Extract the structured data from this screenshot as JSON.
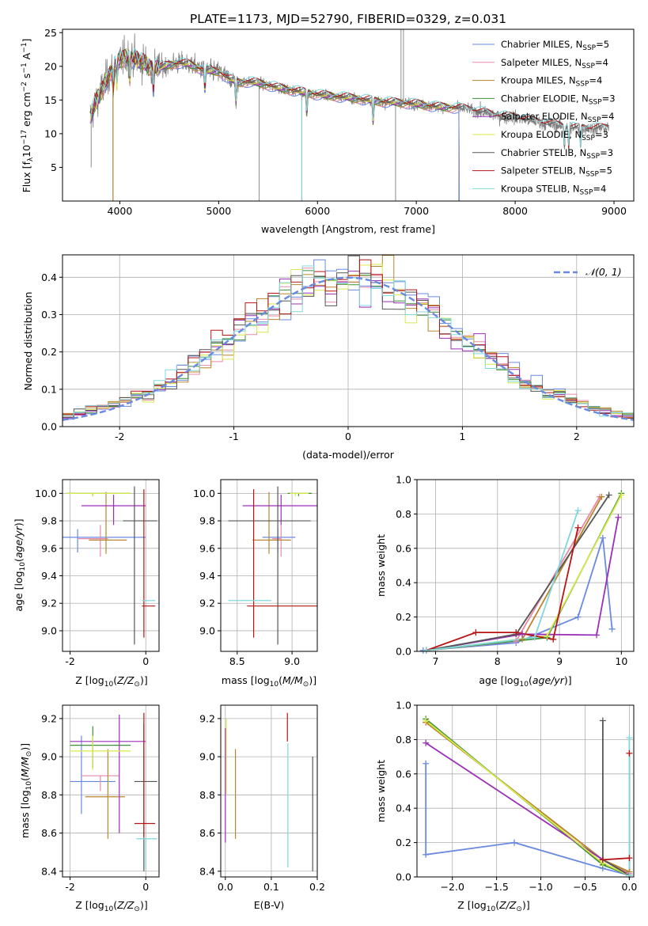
{
  "title": "PLATE=1173, MJD=52790, FIBERID=0329, z=0.031",
  "colors": {
    "Chabrier MILES": "#6a8ae0",
    "Salpeter MILES": "#e889a8",
    "Kroupa MILES": "#b8862b",
    "Chabrier ELODIE": "#3f8f3a",
    "Salpeter ELODIE": "#9a2fb8",
    "Kroupa ELODIE": "#d8e84a",
    "Chabrier STELIB": "#555555",
    "Salpeter STELIB": "#b81414",
    "Kroupa STELIB": "#7fd8dc",
    "data": "#808080",
    "normal": "#6a8ae0"
  },
  "chart_data": [
    {
      "id": "spectrum",
      "type": "line",
      "xlabel": "wavelength [Angstrom, rest frame]",
      "ylabel_parts": [
        "Flux [f",
        "λ",
        "10",
        "−17",
        " erg cm",
        "−2",
        " s",
        "−1",
        " A",
        "−1",
        "]"
      ],
      "xlim": [
        3420,
        9200
      ],
      "ylim": [
        0,
        25.5
      ],
      "xticks": [
        4000,
        5000,
        6000,
        7000,
        8000,
        9000
      ],
      "yticks": [
        5,
        10,
        15,
        20,
        25
      ],
      "legend_position": "upper right",
      "legend": [
        {
          "label": "Chabrier MILES, N",
          "sub": "SSP",
          "suffix": "=5",
          "color": "#6a8ae0"
        },
        {
          "label": "Salpeter MILES, N",
          "sub": "SSP",
          "suffix": "=4",
          "color": "#e889a8"
        },
        {
          "label": "Kroupa MILES, N",
          "sub": "SSP",
          "suffix": "=4",
          "color": "#b8862b"
        },
        {
          "label": "Chabrier ELODIE, N",
          "sub": "SSP",
          "suffix": "=3",
          "color": "#3f8f3a"
        },
        {
          "label": "Salpeter ELODIE, N",
          "sub": "SSP",
          "suffix": "=4",
          "color": "#9a2fb8"
        },
        {
          "label": "Kroupa ELODIE, N",
          "sub": "SSP",
          "suffix": "=3",
          "color": "#d8e84a"
        },
        {
          "label": "Chabrier STELIB, N",
          "sub": "SSP",
          "suffix": "=3",
          "color": "#555555"
        },
        {
          "label": "Salpeter STELIB, N",
          "sub": "SSP",
          "suffix": "=5",
          "color": "#b81414"
        },
        {
          "label": "Kroupa STELIB, N",
          "sub": "SSP",
          "suffix": "=4",
          "color": "#7fd8dc"
        }
      ],
      "continuum": [
        [
          3700,
          12.5
        ],
        [
          3800,
          16
        ],
        [
          3900,
          19
        ],
        [
          4000,
          21
        ],
        [
          4100,
          21.5
        ],
        [
          4200,
          20.8
        ],
        [
          4300,
          20
        ],
        [
          4400,
          19.8
        ],
        [
          4500,
          20.2
        ],
        [
          4600,
          20.5
        ],
        [
          4700,
          20.3
        ],
        [
          4800,
          19.7
        ],
        [
          4900,
          19.3
        ],
        [
          5000,
          19.2
        ],
        [
          5100,
          18.2
        ],
        [
          5200,
          17.6
        ],
        [
          5300,
          17.7
        ],
        [
          5400,
          17.5
        ],
        [
          5500,
          17.2
        ],
        [
          5600,
          16.8
        ],
        [
          5800,
          16.3
        ],
        [
          6000,
          15.8
        ],
        [
          6200,
          15.5
        ],
        [
          6400,
          15.2
        ],
        [
          6600,
          14.8
        ],
        [
          6800,
          14.6
        ],
        [
          7000,
          14.4
        ],
        [
          7200,
          14
        ],
        [
          7430,
          13.8
        ],
        [
          7600,
          13.4
        ],
        [
          7800,
          12.7
        ],
        [
          8000,
          12.4
        ],
        [
          8200,
          11.8
        ],
        [
          8400,
          11.3
        ],
        [
          8600,
          10.8
        ],
        [
          8800,
          10.8
        ],
        [
          8950,
          10.8
        ]
      ],
      "model_end": 7430,
      "absorption_lines": [
        3934,
        3969,
        4102,
        4340,
        4861,
        5175,
        5892,
        6563,
        8498,
        8542,
        8662
      ]
    },
    {
      "id": "residuals",
      "type": "histogram",
      "xlabel": "(data-model)/error",
      "ylabel": "Normed distribution",
      "xlim": [
        -2.5,
        2.5
      ],
      "ylim": [
        0,
        0.46
      ],
      "xticks": [
        -2,
        -1,
        0,
        1,
        2
      ],
      "yticks": [
        0.0,
        0.1,
        0.2,
        0.3,
        0.4
      ],
      "bin_width": 0.1,
      "legend": "𝒩(0, 1)",
      "legend_position": "upper right",
      "grid": true
    },
    {
      "id": "age-vs-Z",
      "type": "errorbar",
      "xlabel": "Z [log10(Z/Z⊙)]",
      "ylabel": "age  [log10(age/yr)]",
      "xlim": [
        -2.2,
        0.35
      ],
      "ylim": [
        8.85,
        10.1
      ],
      "xticks": [
        -2,
        0
      ],
      "yticks": [
        9.0,
        9.2,
        9.4,
        9.6,
        9.8,
        10.0
      ],
      "grid": true,
      "points": [
        {
          "model": "Chabrier MILES",
          "x": -1.8,
          "xerr": [
            0.6,
            1.8
          ],
          "y": 9.68,
          "yerr": [
            0.11,
            0.06
          ]
        },
        {
          "model": "Salpeter MILES",
          "x": -1.2,
          "xerr": [
            0.6,
            0.2
          ],
          "y": 9.67,
          "yerr": [
            0.13,
            0.1
          ]
        },
        {
          "model": "Kroupa MILES",
          "x": -1.05,
          "xerr": [
            0.45,
            0.55
          ],
          "y": 9.66,
          "yerr": [
            0.1,
            0.35
          ]
        },
        {
          "model": "Chabrier ELODIE",
          "x": -1.4,
          "xerr": [
            0.7,
            1.0
          ],
          "y": 10.0,
          "yerr": [
            0.02,
            0.0
          ]
        },
        {
          "model": "Salpeter ELODIE",
          "x": -0.85,
          "xerr": [
            0.85,
            0.85
          ],
          "y": 9.91,
          "yerr": [
            0.14,
            0.08
          ]
        },
        {
          "model": "Kroupa ELODIE",
          "x": -1.4,
          "xerr": [
            0.7,
            1.0
          ],
          "y": 10.0,
          "yerr": [
            0.02,
            0.0
          ]
        },
        {
          "model": "Chabrier STELIB",
          "x": -0.3,
          "xerr": [
            0.3,
            0.6
          ],
          "y": 9.8,
          "yerr": [
            0.9,
            0.25
          ]
        },
        {
          "model": "Salpeter STELIB",
          "x": -0.05,
          "xerr": [
            0.05,
            0.3
          ],
          "y": 9.18,
          "yerr": [
            0.23,
            0.85
          ]
        },
        {
          "model": "Kroupa STELIB",
          "x": -0.05,
          "xerr": [
            0.05,
            0.3
          ],
          "y": 9.22,
          "yerr": [
            0.0,
            0.0
          ]
        }
      ]
    },
    {
      "id": "age-vs-mass",
      "type": "errorbar",
      "xlabel": "mass [log10(M/M⊙)]",
      "xlim": [
        8.35,
        9.23
      ],
      "ylim": [
        8.85,
        10.1
      ],
      "xticks": [
        8.5,
        9.0
      ],
      "yticks": [
        9.0,
        9.2,
        9.4,
        9.6,
        9.8,
        10.0
      ],
      "grid": true,
      "points": [
        {
          "model": "Chabrier MILES",
          "x": 8.87,
          "xerr": [
            0.14,
            0.16
          ],
          "y": 9.68,
          "yerr": [
            0.11,
            0.06
          ]
        },
        {
          "model": "Salpeter MILES",
          "x": 8.9,
          "xerr": [
            0.08,
            0.0
          ],
          "y": 9.67,
          "yerr": [
            0.13,
            0.1
          ]
        },
        {
          "model": "Kroupa MILES",
          "x": 8.79,
          "xerr": [
            0.15,
            0.2
          ],
          "y": 9.66,
          "yerr": [
            0.1,
            0.35
          ]
        },
        {
          "model": "Chabrier ELODIE",
          "x": 9.06,
          "xerr": [
            0.1,
            0.12
          ],
          "y": 10.0,
          "yerr": [
            0.02,
            0.0
          ]
        },
        {
          "model": "Salpeter ELODIE",
          "x": 8.9,
          "xerr": [
            0.35,
            0.33
          ],
          "y": 9.91,
          "yerr": [
            0.14,
            0.08
          ]
        },
        {
          "model": "Kroupa ELODIE",
          "x": 9.03,
          "xerr": [
            0.05,
            0.12
          ],
          "y": 10.0,
          "yerr": [
            0.02,
            0.0
          ]
        },
        {
          "model": "Chabrier STELIB",
          "x": 8.87,
          "xerr": [
            0.45,
            0.3
          ],
          "y": 9.8,
          "yerr": [
            0.9,
            0.25
          ]
        },
        {
          "model": "Salpeter STELIB",
          "x": 8.65,
          "xerr": [
            0.06,
            0.6
          ],
          "y": 9.18,
          "yerr": [
            0.23,
            0.85
          ]
        },
        {
          "model": "Kroupa STELIB",
          "x": 8.57,
          "xerr": [
            0.15,
            0.24
          ],
          "y": 9.22,
          "yerr": [
            0.0,
            0.0
          ]
        }
      ]
    },
    {
      "id": "weight-vs-age",
      "type": "line",
      "xlabel": "age  [log10(age/yr)]",
      "ylabel": "mass weight",
      "xlim": [
        6.7,
        10.2
      ],
      "ylim": [
        0,
        1.0
      ],
      "xticks": [
        7,
        8,
        9,
        10
      ],
      "yticks": [
        0.0,
        0.2,
        0.4,
        0.6,
        0.8,
        1.0
      ],
      "grid": true,
      "series": [
        {
          "model": "Chabrier MILES",
          "x": [
            6.8,
            8.3,
            9.3,
            9.7,
            9.85
          ],
          "y": [
            0.005,
            0.05,
            0.2,
            0.66,
            0.13
          ]
        },
        {
          "model": "Salpeter MILES",
          "x": [
            6.85,
            8.3,
            9.65
          ],
          "y": [
            0.005,
            0.06,
            0.9
          ]
        },
        {
          "model": "Kroupa MILES",
          "x": [
            6.85,
            8.4,
            9.68
          ],
          "y": [
            0.005,
            0.07,
            0.9
          ]
        },
        {
          "model": "Chabrier ELODIE",
          "x": [
            6.85,
            8.8,
            10.0
          ],
          "y": [
            0.005,
            0.08,
            0.92
          ]
        },
        {
          "model": "Salpeter ELODIE",
          "x": [
            6.85,
            8.4,
            9.6,
            9.95
          ],
          "y": [
            0.005,
            0.1,
            0.095,
            0.78
          ]
        },
        {
          "model": "Kroupa ELODIE",
          "x": [
            6.85,
            8.8,
            10.0
          ],
          "y": [
            0.005,
            0.09,
            0.91
          ]
        },
        {
          "model": "Chabrier STELIB",
          "x": [
            6.85,
            8.3,
            9.8
          ],
          "y": [
            0.005,
            0.1,
            0.91
          ]
        },
        {
          "model": "Salpeter STELIB",
          "x": [
            6.85,
            7.65,
            8.3,
            8.9,
            9.3
          ],
          "y": [
            0.005,
            0.11,
            0.11,
            0.07,
            0.72
          ]
        },
        {
          "model": "Kroupa STELIB",
          "x": [
            6.85,
            8.6,
            9.3
          ],
          "y": [
            0.005,
            0.08,
            0.82
          ]
        }
      ]
    },
    {
      "id": "mass-vs-Z",
      "type": "errorbar",
      "xlabel": "Z [log10(Z/Z⊙)]",
      "ylabel": "mass [log10(M/M⊙)]",
      "xlim": [
        -2.2,
        0.35
      ],
      "ylim": [
        8.37,
        9.27
      ],
      "xticks": [
        -2,
        0
      ],
      "yticks": [
        8.4,
        8.6,
        8.8,
        9.0,
        9.2
      ],
      "grid": true,
      "points": [
        {
          "model": "Chabrier MILES",
          "x": -1.7,
          "xerr": [
            0.3,
            0.9
          ],
          "y": 8.87,
          "yerr": [
            0.17,
            0.24
          ]
        },
        {
          "model": "Salpeter MILES",
          "x": -1.2,
          "xerr": [
            0.5,
            0.5
          ],
          "y": 8.9,
          "yerr": [
            0.08,
            0.0
          ]
        },
        {
          "model": "Kroupa MILES",
          "x": -1.0,
          "xerr": [
            0.6,
            0.45
          ],
          "y": 8.79,
          "yerr": [
            0.22,
            0.25
          ]
        },
        {
          "model": "Chabrier ELODIE",
          "x": -1.4,
          "xerr": [
            0.6,
            1.0
          ],
          "y": 9.06,
          "yerr": [
            0.12,
            0.1
          ]
        },
        {
          "model": "Salpeter ELODIE",
          "x": -0.7,
          "xerr": [
            1.3,
            0.7
          ],
          "y": 9.08,
          "yerr": [
            0.48,
            0.14
          ]
        },
        {
          "model": "Kroupa ELODIE",
          "x": -1.4,
          "xerr": [
            0.6,
            1.0
          ],
          "y": 9.03,
          "yerr": [
            0.1,
            0.08
          ]
        },
        {
          "model": "Chabrier STELIB",
          "x": -0.05,
          "xerr": [
            0.25,
            0.35
          ],
          "y": 8.87,
          "yerr": [
            0.47,
            0.3
          ]
        },
        {
          "model": "Salpeter STELIB",
          "x": -0.05,
          "xerr": [
            0.25,
            0.3
          ],
          "y": 8.65,
          "yerr": [
            0.07,
            0.58
          ]
        },
        {
          "model": "Kroupa STELIB",
          "x": 0.0,
          "xerr": [
            0.25,
            0.3
          ],
          "y": 8.57,
          "yerr": [
            0.16,
            0.0
          ]
        }
      ]
    },
    {
      "id": "mass-vs-EBV",
      "type": "errorbar",
      "xlabel": "E(B-V)",
      "xlim": [
        -0.01,
        0.2
      ],
      "ylim": [
        8.37,
        9.27
      ],
      "xticks": [
        0.0,
        0.1,
        0.2
      ],
      "yticks": [
        8.4,
        8.6,
        8.8,
        9.0,
        9.2
      ],
      "grid": true,
      "points": [
        {
          "model": "Salpeter ELODIE",
          "x": 0.0,
          "yerr": [
            0.4,
            0.2
          ],
          "y": 8.95
        },
        {
          "model": "Kroupa ELODIE",
          "x": 0.002,
          "yerr": [
            0.2,
            0.2
          ],
          "y": 9.0
        },
        {
          "model": "Kroupa MILES",
          "x": 0.022,
          "yerr": [
            0.22,
            0.25
          ],
          "y": 8.79
        },
        {
          "model": "Salpeter STELIB",
          "x": 0.135,
          "yerr": [
            0.0,
            0.15
          ],
          "y": 9.08
        },
        {
          "model": "Kroupa STELIB",
          "x": 0.136,
          "yerr": [
            0.65,
            0.0
          ],
          "y": 9.07
        },
        {
          "model": "Chabrier STELIB",
          "x": 0.19,
          "yerr": [
            0.6,
            0.0
          ],
          "y": 9.0
        }
      ]
    },
    {
      "id": "weight-vs-Z",
      "type": "line",
      "xlabel": "Z [log10(Z/Z⊙)]",
      "ylabel": "mass weight",
      "xlim": [
        -2.4,
        0.05
      ],
      "ylim": [
        0,
        1.0
      ],
      "xticks": [
        -2.0,
        -1.5,
        -1.0,
        -0.5,
        0.0
      ],
      "yticks": [
        0.0,
        0.2,
        0.4,
        0.6,
        0.8,
        1.0
      ],
      "grid": true,
      "series": [
        {
          "model": "Chabrier MILES",
          "x": [
            -2.3,
            -2.3,
            -1.3,
            -0.3,
            0.0
          ],
          "y": [
            0.66,
            0.13,
            0.2,
            0.05,
            0.01
          ]
        },
        {
          "model": "Salpeter MILES",
          "x": [
            -2.3,
            -0.3,
            0.0
          ],
          "y": [
            0.9,
            0.1,
            0.02
          ]
        },
        {
          "model": "Kroupa MILES",
          "x": [
            -2.3,
            -0.3,
            0.0
          ],
          "y": [
            0.9,
            0.1,
            0.03
          ]
        },
        {
          "model": "Chabrier ELODIE",
          "x": [
            -2.3,
            -0.3,
            0.0
          ],
          "y": [
            0.92,
            0.07,
            0.01
          ]
        },
        {
          "model": "Salpeter ELODIE",
          "x": [
            -2.3,
            -0.3,
            0.0
          ],
          "y": [
            0.78,
            0.1,
            0.01
          ]
        },
        {
          "model": "Kroupa ELODIE",
          "x": [
            -2.3,
            -0.3,
            0.0
          ],
          "y": [
            0.91,
            0.08,
            0.01
          ]
        },
        {
          "model": "Chabrier STELIB",
          "x": [
            -0.3,
            -0.3,
            0.0
          ],
          "y": [
            0.91,
            0.1,
            0.01
          ]
        },
        {
          "model": "Salpeter STELIB",
          "x": [
            -0.3,
            0.0,
            0.0,
            0.0
          ],
          "y": [
            0.1,
            0.11,
            0.72,
            0.01
          ]
        },
        {
          "model": "Kroupa STELIB",
          "x": [
            0.0,
            0.0
          ],
          "y": [
            0.81,
            0.01
          ]
        }
      ]
    }
  ]
}
